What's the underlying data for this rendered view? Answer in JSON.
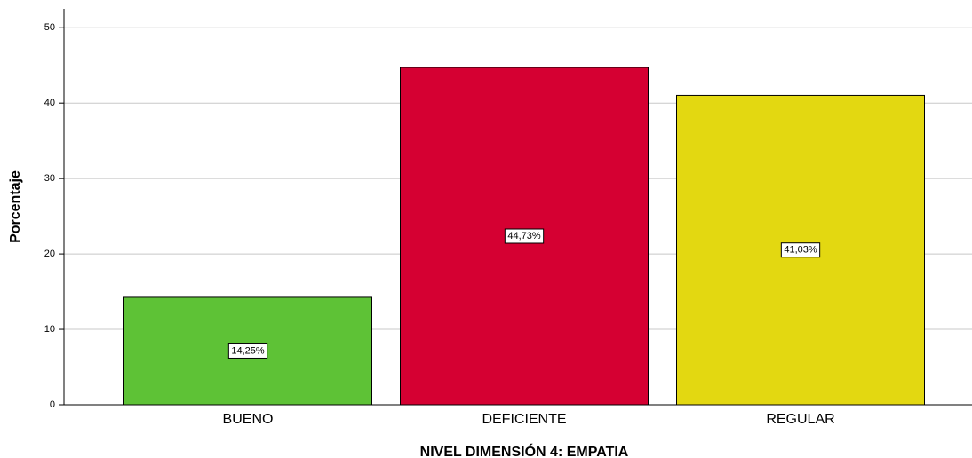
{
  "chart_data": {
    "type": "bar",
    "x_label": "NIVEL DIMENSIÓN 4: EMPATIA",
    "y_label": "Porcentaje",
    "categories": [
      "BUENO",
      "DEFICIENTE",
      "REGULAR"
    ],
    "values": [
      14.25,
      44.73,
      41.03
    ],
    "value_labels": [
      "14,25%",
      "44,73%",
      "41,03%"
    ],
    "colors": [
      "#5ec236",
      "#d50032",
      "#e3d811"
    ],
    "ylim": [
      0,
      52.5
    ],
    "yticks": [
      0,
      10,
      20,
      30,
      40,
      50
    ],
    "grid": true
  }
}
